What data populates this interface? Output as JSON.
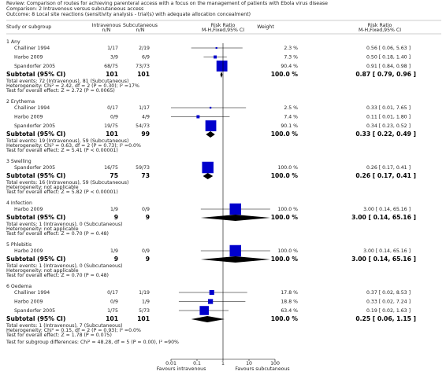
{
  "header": {
    "review": "Review:  Comparison of routes for achieving parenteral access with a focus on the management of patients with Ebola virus disease",
    "comparison": "Comparison:  2 Intravenous versus subcutaneous access",
    "outcome": "Outcome:  8 Local site reactions (sensitivity analysis - trial(s) with adequate allocation concealment)"
  },
  "chart_data": {
    "type": "forest",
    "columns": {
      "study": "Study or subgroup",
      "int": "Intravenous",
      "int_sub": "n/N",
      "sub": "Subcutaneous",
      "sub_sub": "n/N",
      "weight": "Weight",
      "rr": "Risk Ratio",
      "rr_sub": "M-H,Fixed,95% CI",
      "rr2": "Risk Ratio",
      "rr2_sub": "M-H,Fixed,95% CI"
    },
    "xlim": [
      0.01,
      100
    ],
    "log_scale": true,
    "xticks": [
      0.01,
      0.1,
      1,
      10,
      100
    ],
    "favours_left": "Favours intravenous",
    "favours_right": "Favours subcutaneous",
    "square_color": "#0000cc",
    "diamond_color": "#000000",
    "groups": [
      {
        "name": "1 Any",
        "studies": [
          {
            "name": "Challiner 1994",
            "int": "1/17",
            "sub": "2/19",
            "weight": {
              "value": 2.3,
              "label": "2.3 %"
            },
            "rr": 0.56,
            "ci": [
              0.06,
              5.63
            ],
            "label": "0.56 [ 0.06, 5.63 ]"
          },
          {
            "name": "Harbo 2009",
            "int": "3/9",
            "sub": "6/9",
            "weight": {
              "value": 7.3,
              "label": "7.3 %"
            },
            "rr": 0.5,
            "ci": [
              0.18,
              1.4
            ],
            "label": "0.50 [ 0.18, 1.40 ]"
          },
          {
            "name": "Spandorfer 2005",
            "int": "68/75",
            "sub": "73/73",
            "weight": {
              "value": 90.4,
              "label": "90.4 %"
            },
            "rr": 0.91,
            "ci": [
              0.84,
              0.98
            ],
            "label": "0.91 [ 0.84, 0.98 ]"
          }
        ],
        "subtotal": {
          "name": "Subtotal (95% CI)",
          "int": "101",
          "sub": "101",
          "weight": {
            "value": 100,
            "label": "100.0 %"
          },
          "rr": 0.87,
          "ci": [
            0.79,
            0.96
          ],
          "label": "0.87 [ 0.79, 0.96 ]"
        },
        "notes": [
          "Total events: 72 (Intravenous), 81 (Subcutaneous)",
          "Heterogeneity: Chi² = 2.42, df = 2 (P = 0.30); I² =17%",
          "Test for overall effect: Z = 2.72 (P = 0.0065)"
        ]
      },
      {
        "name": "2 Erythema",
        "studies": [
          {
            "name": "Challiner 1994",
            "int": "0/17",
            "sub": "1/17",
            "weight": {
              "value": 2.5,
              "label": "2.5 %"
            },
            "rr": 0.33,
            "ci": [
              0.01,
              7.65
            ],
            "label": "0.33 [ 0.01, 7.65 ]"
          },
          {
            "name": "Harbo 2009",
            "int": "0/9",
            "sub": "4/9",
            "weight": {
              "value": 7.4,
              "label": "7.4 %"
            },
            "rr": 0.11,
            "ci": [
              0.01,
              1.8
            ],
            "label": "0.11 [ 0.01, 1.80 ]"
          },
          {
            "name": "Spandorfer 2005",
            "int": "19/75",
            "sub": "54/73",
            "weight": {
              "value": 90.1,
              "label": "90.1 %"
            },
            "rr": 0.34,
            "ci": [
              0.23,
              0.52
            ],
            "label": "0.34 [ 0.23, 0.52 ]"
          }
        ],
        "subtotal": {
          "name": "Subtotal (95% CI)",
          "int": "101",
          "sub": "99",
          "weight": {
            "value": 100,
            "label": "100.0 %"
          },
          "rr": 0.33,
          "ci": [
            0.22,
            0.49
          ],
          "label": "0.33 [ 0.22, 0.49 ]"
        },
        "notes": [
          "Total events: 19 (Intravenous), 59 (Subcutaneous)",
          "Heterogeneity: Chi² = 0.63, df = 2 (P = 0.73); I² =0.0%",
          "Test for overall effect: Z = 5.41 (P < 0.00001)"
        ]
      },
      {
        "name": "3 Swelling",
        "studies": [
          {
            "name": "Spandorfer 2005",
            "int": "16/75",
            "sub": "59/73",
            "weight": {
              "value": 100,
              "label": "100.0 %"
            },
            "rr": 0.26,
            "ci": [
              0.17,
              0.41
            ],
            "label": "0.26 [ 0.17, 0.41 ]"
          }
        ],
        "subtotal": {
          "name": "Subtotal (95% CI)",
          "int": "75",
          "sub": "73",
          "weight": {
            "value": 100,
            "label": "100.0 %"
          },
          "rr": 0.26,
          "ci": [
            0.17,
            0.41
          ],
          "label": "0.26 [ 0.17, 0.41 ]"
        },
        "notes": [
          "Total events: 16 (Intravenous), 59 (Subcutaneous)",
          "Heterogeneity: not applicable",
          "Test for overall effect: Z = 5.82 (P < 0.00001)"
        ]
      },
      {
        "name": "4 Infection",
        "studies": [
          {
            "name": "Harbo 2009",
            "int": "1/9",
            "sub": "0/9",
            "weight": {
              "value": 100,
              "label": "100.0 %"
            },
            "rr": 3,
            "ci": [
              0.14,
              65.16
            ],
            "label": "3.00 [ 0.14, 65.16 ]"
          }
        ],
        "subtotal": {
          "name": "Subtotal (95% CI)",
          "int": "9",
          "sub": "9",
          "weight": {
            "value": 100,
            "label": "100.0 %"
          },
          "rr": 3,
          "ci": [
            0.14,
            65.16
          ],
          "label": "3.00 [ 0.14, 65.16 ]"
        },
        "notes": [
          "Total events: 1 (Intravenous), 0 (Subcutaneous)",
          "Heterogeneity: not applicable",
          "Test for overall effect: Z = 0.70 (P = 0.48)"
        ]
      },
      {
        "name": "5 Phlebitis",
        "studies": [
          {
            "name": "Harbo 2009",
            "int": "1/9",
            "sub": "0/9",
            "weight": {
              "value": 100,
              "label": "100.0 %"
            },
            "rr": 3,
            "ci": [
              0.14,
              65.16
            ],
            "label": "3.00 [ 0.14, 65.16 ]"
          }
        ],
        "subtotal": {
          "name": "Subtotal (95% CI)",
          "int": "9",
          "sub": "9",
          "weight": {
            "value": 100,
            "label": "100.0 %"
          },
          "rr": 3,
          "ci": [
            0.14,
            65.16
          ],
          "label": "3.00 [ 0.14, 65.16 ]"
        },
        "notes": [
          "Total events: 1 (Intravenous), 0 (Subcutaneous)",
          "Heterogeneity: not applicable",
          "Test for overall effect: Z = 0.70 (P = 0.48)"
        ]
      },
      {
        "name": "6 Oedema",
        "studies": [
          {
            "name": "Challiner 1994",
            "int": "0/17",
            "sub": "1/19",
            "weight": {
              "value": 17.8,
              "label": "17.8 %"
            },
            "rr": 0.37,
            "ci": [
              0.02,
              8.53
            ],
            "label": "0.37 [ 0.02, 8.53 ]"
          },
          {
            "name": "Harbo 2009",
            "int": "0/9",
            "sub": "1/9",
            "weight": {
              "value": 18.8,
              "label": "18.8 %"
            },
            "rr": 0.33,
            "ci": [
              0.02,
              7.24
            ],
            "label": "0.33 [ 0.02, 7.24 ]"
          },
          {
            "name": "Spandorfer 2005",
            "int": "1/75",
            "sub": "5/73",
            "weight": {
              "value": 63.4,
              "label": "63.4 %"
            },
            "rr": 0.19,
            "ci": [
              0.02,
              1.63
            ],
            "label": "0.19 [ 0.02, 1.63 ]"
          }
        ],
        "subtotal": {
          "name": "Subtotal (95% CI)",
          "int": "101",
          "sub": "101",
          "weight": {
            "value": 100,
            "label": "100.0 %"
          },
          "rr": 0.25,
          "ci": [
            0.06,
            1.15
          ],
          "label": "0.25 [ 0.06, 1.15 ]"
        },
        "notes": [
          "Total events: 1 (Intravenous), 7 (Subcutaneous)",
          "Heterogeneity: Chi² = 0.15, df = 2 (P = 0.93); I² =0.0%",
          "Test for overall effect: Z = 1.78 (P = 0.075)"
        ]
      }
    ],
    "subgroup_test": "Test for subgroup differences: Chi² = 48.28, df = 5 (P = 0.00), I² =90%"
  }
}
